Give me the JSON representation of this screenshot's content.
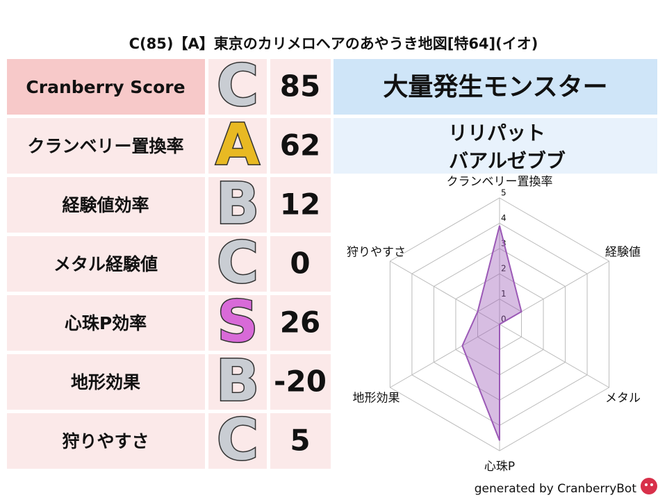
{
  "header": {
    "title": "C(85)【A】東京のカリメロヘアのあやうき地図[特64](イオ)"
  },
  "table": {
    "rows": [
      {
        "label": "Cranberry Score",
        "grade": "C",
        "grade_color": "#c9cdd3",
        "score": 85
      },
      {
        "label": "クランベリー置換率",
        "grade": "A",
        "grade_color": "#e8b923",
        "score": 62
      },
      {
        "label": "経験値効率",
        "grade": "B",
        "grade_color": "#c9cdd3",
        "score": 12
      },
      {
        "label": "メタル経験値",
        "grade": "C",
        "grade_color": "#c9cdd3",
        "score": 0
      },
      {
        "label": "心珠P効率",
        "grade": "S",
        "grade_color": "#d86ad8",
        "score": 26
      },
      {
        "label": "地形効果",
        "grade": "B",
        "grade_color": "#c9cdd3",
        "score": -20
      },
      {
        "label": "狩りやすさ",
        "grade": "C",
        "grade_color": "#c9cdd3",
        "score": 5
      }
    ]
  },
  "monster": {
    "heading": "大量発生モンスター",
    "names": [
      "リリパット",
      "バアルゼブブ"
    ]
  },
  "chart_data": {
    "type": "radar",
    "categories": [
      "クランベリー置換率",
      "経験値",
      "メタル",
      "心珠P",
      "地形効果",
      "狩りやすさ"
    ],
    "values": [
      3.9,
      1,
      0,
      4.6,
      1.7,
      1
    ],
    "color": "#9b59b6",
    "rlim": [
      0,
      5
    ],
    "rticks": [
      0,
      1,
      2,
      3,
      4,
      5
    ],
    "grid": true
  },
  "footer": "generated by CranberryBot"
}
